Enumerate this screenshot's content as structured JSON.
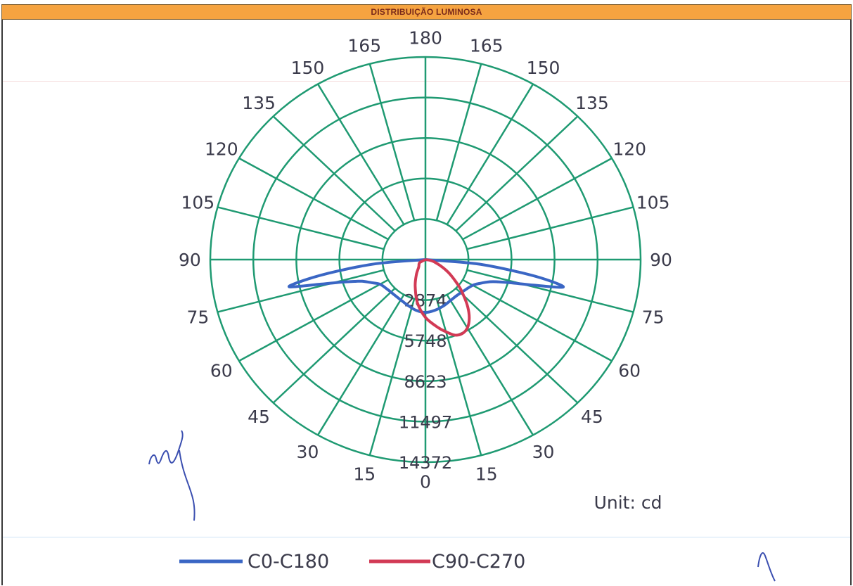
{
  "header": {
    "title": "DISTRIBUIÇÃO LUMINOSA"
  },
  "colors": {
    "grid": "#1f9a72",
    "c0": "#3a66c4",
    "c90": "#d23a55",
    "header_bg": "#f5a340",
    "text": "#3a3a4a"
  },
  "chart_data": {
    "type": "polar",
    "title": "DISTRIBUIÇÃO LUMINOSA",
    "unit_label": "Unit: cd",
    "max_radius": 14372,
    "radial_ticks": [
      2874,
      5748,
      8623,
      11497,
      14372
    ],
    "radial_tick_labels": [
      "2874",
      "5748",
      "8623",
      "11497",
      "14372"
    ],
    "angle_step": 15,
    "left_angle_labels": [
      "180",
      "165",
      "150",
      "135",
      "120",
      "105",
      "90",
      "75",
      "60",
      "45",
      "30",
      "15",
      "0"
    ],
    "right_angle_labels": [
      "165",
      "150",
      "135",
      "120",
      "105",
      "90",
      "75",
      "60",
      "45",
      "30",
      "15"
    ],
    "legend": [
      {
        "name": "C0-C180",
        "color": "#3a66c4"
      },
      {
        "name": "C90-C270",
        "color": "#d23a55"
      }
    ],
    "series": [
      {
        "name": "C0-C180",
        "angles": [
          -90,
          -85,
          -82,
          -80,
          -78,
          -76,
          -74,
          -72,
          -70,
          -65,
          -60,
          -50,
          -40,
          -30,
          -20,
          -10,
          0,
          10,
          20,
          30,
          40,
          50,
          60,
          65,
          70,
          72,
          74,
          76,
          78,
          80,
          82,
          85,
          90
        ],
        "values": [
          0,
          3300,
          6000,
          8000,
          9300,
          7200,
          5800,
          5000,
          4500,
          3900,
          3500,
          3300,
          3250,
          3300,
          3450,
          3650,
          3750,
          3650,
          3500,
          3350,
          3300,
          3400,
          3650,
          4000,
          4600,
          5100,
          6000,
          7500,
          9400,
          8200,
          6200,
          3400,
          0
        ]
      },
      {
        "name": "C90-C270",
        "angles": [
          -90,
          -60,
          -40,
          -30,
          -20,
          -10,
          0,
          10,
          15,
          20,
          25,
          30,
          35,
          40,
          45,
          50,
          60,
          75,
          90
        ],
        "values": [
          0,
          450,
          700,
          1200,
          2000,
          3100,
          4100,
          4900,
          5300,
          5700,
          5800,
          5600,
          5100,
          4400,
          3600,
          2900,
          1700,
          600,
          0
        ]
      }
    ]
  }
}
